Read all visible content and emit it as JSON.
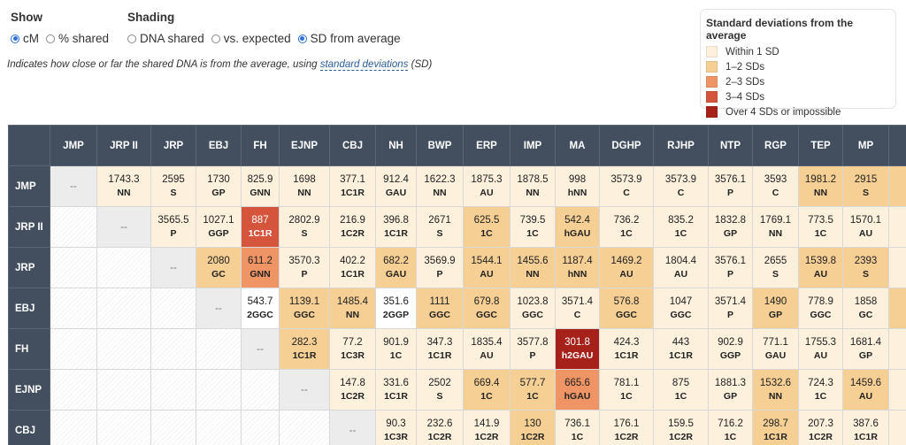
{
  "show": {
    "title": "Show",
    "options": [
      {
        "label": "cM",
        "selected": true
      },
      {
        "label": "% shared",
        "selected": false
      }
    ]
  },
  "shading": {
    "title": "Shading",
    "options": [
      {
        "label": "DNA shared",
        "selected": false
      },
      {
        "label": "vs. expected",
        "selected": false
      },
      {
        "label": "SD from average",
        "selected": true
      }
    ]
  },
  "description": {
    "before": "Indicates how close or far the shared DNA is from the average, using ",
    "link": "standard deviations",
    "after": " (SD)"
  },
  "legend": {
    "title": "Standard deviations from the average",
    "items": [
      {
        "label": "Within 1 SD",
        "color": "#fdf0dc"
      },
      {
        "label": "1–2 SDs",
        "color": "#f5cf94"
      },
      {
        "label": "2–3 SDs",
        "color": "#ef9464"
      },
      {
        "label": "3–4 SDs",
        "color": "#d5543c"
      },
      {
        "label": "Over 4 SDs or impossible",
        "color": "#a5211a"
      }
    ],
    "no_shading_color": "#ffffff"
  },
  "table": {
    "diagonal_text": "--",
    "columns": [
      "JMP",
      "JRP II",
      "JRP",
      "EBJ",
      "FH",
      "EJNP",
      "CBJ",
      "NH",
      "BWP",
      "ERP",
      "IMP",
      "MA",
      "DGHP",
      "RJHP",
      "NTP",
      "RGP",
      "TEP",
      "MP"
    ],
    "clipped_column_levels": [
      1,
      0,
      0,
      1,
      0,
      0,
      0
    ],
    "rows": [
      {
        "label": "JMP",
        "cells": [
          [
            "1743.3",
            "NN",
            0
          ],
          [
            "2595",
            "S",
            0
          ],
          [
            "1730",
            "GP",
            0
          ],
          [
            "825.9",
            "GNN",
            0
          ],
          [
            "1698",
            "NN",
            0
          ],
          [
            "377.1",
            "1C1R",
            0
          ],
          [
            "912.4",
            "GAU",
            0
          ],
          [
            "1622.3",
            "NN",
            0
          ],
          [
            "1875.3",
            "AU",
            0
          ],
          [
            "1878.5",
            "NN",
            0
          ],
          [
            "998",
            "hNN",
            0
          ],
          [
            "3573.9",
            "C",
            0
          ],
          [
            "3573.9",
            "C",
            0
          ],
          [
            "3576.1",
            "P",
            0
          ],
          [
            "3593",
            "C",
            0
          ],
          [
            "1981.2",
            "NN",
            1
          ],
          [
            "2915",
            "S",
            1
          ]
        ]
      },
      {
        "label": "JRP II",
        "cells": [
          [
            "3565.5",
            "P",
            0
          ],
          [
            "1027.1",
            "GGP",
            0
          ],
          [
            "887",
            "1C1R",
            3
          ],
          [
            "2802.9",
            "S",
            0
          ],
          [
            "216.9",
            "1C2R",
            0
          ],
          [
            "396.8",
            "1C1R",
            0
          ],
          [
            "2671",
            "S",
            0
          ],
          [
            "625.5",
            "1C",
            1
          ],
          [
            "739.5",
            "1C",
            0
          ],
          [
            "542.4",
            "hGAU",
            1
          ],
          [
            "736.2",
            "1C",
            0
          ],
          [
            "835.2",
            "1C",
            0
          ],
          [
            "1832.8",
            "GP",
            0
          ],
          [
            "1769.1",
            "NN",
            0
          ],
          [
            "773.5",
            "1C",
            0
          ],
          [
            "1570.1",
            "AU",
            0
          ]
        ]
      },
      {
        "label": "JRP",
        "cells": [
          [
            "2080",
            "GC",
            1
          ],
          [
            "611.2",
            "GNN",
            2
          ],
          [
            "3570.3",
            "P",
            0
          ],
          [
            "402.2",
            "1C1R",
            0
          ],
          [
            "682.2",
            "GAU",
            1
          ],
          [
            "3569.9",
            "P",
            0
          ],
          [
            "1544.1",
            "AU",
            1
          ],
          [
            "1455.6",
            "NN",
            1
          ],
          [
            "1187.4",
            "hNN",
            1
          ],
          [
            "1469.2",
            "AU",
            1
          ],
          [
            "1804.4",
            "AU",
            0
          ],
          [
            "3576.1",
            "P",
            0
          ],
          [
            "2655",
            "S",
            0
          ],
          [
            "1539.8",
            "AU",
            1
          ],
          [
            "2393",
            "S",
            1
          ]
        ]
      },
      {
        "label": "EBJ",
        "cells": [
          [
            "543.7",
            "2GGC",
            "none"
          ],
          [
            "1139.1",
            "GGC",
            1
          ],
          [
            "1485.4",
            "NN",
            1
          ],
          [
            "351.6",
            "2GGP",
            "none"
          ],
          [
            "1111",
            "GGC",
            1
          ],
          [
            "679.8",
            "GGC",
            1
          ],
          [
            "1023.8",
            "GGC",
            0
          ],
          [
            "3571.4",
            "C",
            0
          ],
          [
            "576.8",
            "GGC",
            1
          ],
          [
            "1047",
            "GGC",
            0
          ],
          [
            "3571.4",
            "P",
            0
          ],
          [
            "1490",
            "GP",
            1
          ],
          [
            "778.9",
            "GGC",
            0
          ],
          [
            "1858",
            "GC",
            0
          ]
        ]
      },
      {
        "label": "FH",
        "cells": [
          [
            "282.3",
            "1C1R",
            1
          ],
          [
            "77.2",
            "1C3R",
            0
          ],
          [
            "901.9",
            "1C",
            0
          ],
          [
            "347.3",
            "1C1R",
            0
          ],
          [
            "1835.4",
            "AU",
            0
          ],
          [
            "3577.8",
            "P",
            0
          ],
          [
            "301.8",
            "h2GAU",
            4
          ],
          [
            "424.3",
            "1C1R",
            0
          ],
          [
            "443",
            "1C1R",
            0
          ],
          [
            "902.9",
            "GGP",
            0
          ],
          [
            "771.1",
            "GAU",
            0
          ],
          [
            "1755.3",
            "AU",
            0
          ],
          [
            "1681.4",
            "GP",
            0
          ]
        ]
      },
      {
        "label": "EJNP",
        "cells": [
          [
            "147.8",
            "1C2R",
            0
          ],
          [
            "331.6",
            "1C1R",
            0
          ],
          [
            "2502",
            "S",
            0
          ],
          [
            "669.4",
            "1C",
            1
          ],
          [
            "577.7",
            "1C",
            1
          ],
          [
            "665.6",
            "hGAU",
            2
          ],
          [
            "781.1",
            "1C",
            0
          ],
          [
            "875",
            "1C",
            0
          ],
          [
            "1881.3",
            "GP",
            0
          ],
          [
            "1532.6",
            "NN",
            1
          ],
          [
            "724.3",
            "1C",
            0
          ],
          [
            "1459.6",
            "AU",
            1
          ]
        ]
      },
      {
        "label": "CBJ",
        "cells": [
          [
            "90.3",
            "1C3R",
            0
          ],
          [
            "232.6",
            "1C2R",
            0
          ],
          [
            "141.9",
            "1C2R",
            0
          ],
          [
            "130",
            "1C2R",
            1
          ],
          [
            "736.1",
            "1C",
            0
          ],
          [
            "176.1",
            "1C2R",
            0
          ],
          [
            "159.5",
            "1C2R",
            0
          ],
          [
            "716.2",
            "1C",
            0
          ],
          [
            "298.7",
            "1C1R",
            1
          ],
          [
            "207.3",
            "1C2R",
            0
          ],
          [
            "387.6",
            "1C1R",
            0
          ]
        ]
      }
    ]
  }
}
